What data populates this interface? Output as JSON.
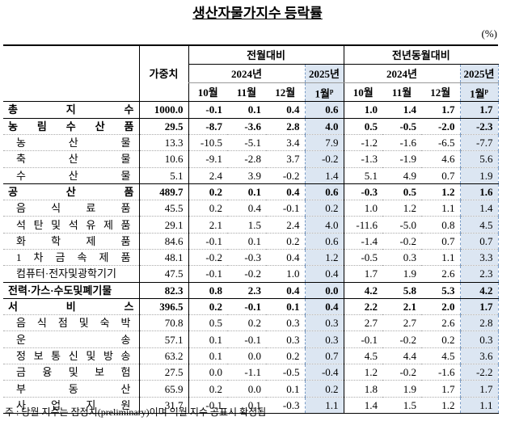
{
  "title": "생산자물가지수 등락률",
  "unit": "(%)",
  "header": {
    "weight": "가중치",
    "sections": [
      "전월대비",
      "전년동월대비"
    ],
    "years": [
      "2024년",
      "2025년"
    ],
    "months": [
      "10월",
      "11월",
      "12월",
      "1월"
    ],
    "prelim_mark": "p"
  },
  "rows": [
    {
      "name": "총 지 수",
      "weight": "1000.0",
      "values": [
        "-0.1",
        "0.1",
        "0.4",
        "0.6",
        "1.0",
        "1.4",
        "1.7",
        "1.7"
      ],
      "group": true
    },
    {
      "name": "농 림 수 산 품",
      "weight": "29.5",
      "values": [
        "-8.7",
        "-3.6",
        "2.8",
        "4.0",
        "0.5",
        "-0.5",
        "-2.0",
        "-2.3"
      ],
      "group": true
    },
    {
      "name": "농 산 물",
      "weight": "13.3",
      "values": [
        "-10.5",
        "-5.1",
        "3.4",
        "7.9",
        "-1.2",
        "-1.6",
        "-6.5",
        "-7.7"
      ],
      "group": false
    },
    {
      "name": "축 산 물",
      "weight": "10.6",
      "values": [
        "-9.1",
        "-2.8",
        "3.7",
        "-0.2",
        "-1.3",
        "-1.9",
        "4.6",
        "5.6"
      ],
      "group": false
    },
    {
      "name": "수 산 물",
      "weight": "5.1",
      "values": [
        "2.4",
        "3.9",
        "-0.2",
        "1.4",
        "5.1",
        "4.9",
        "0.7",
        "1.9"
      ],
      "group": false
    },
    {
      "name": "공 산 품",
      "weight": "489.7",
      "values": [
        "0.2",
        "0.1",
        "0.4",
        "0.6",
        "-0.3",
        "0.5",
        "1.2",
        "1.6"
      ],
      "group": true
    },
    {
      "name": "음 식 료 품",
      "weight": "45.5",
      "values": [
        "0.2",
        "0.4",
        "-0.1",
        "0.2",
        "1.0",
        "1.2",
        "1.1",
        "1.4"
      ],
      "group": false
    },
    {
      "name": "석 탄 및 석 유 제 품",
      "weight": "29.1",
      "values": [
        "2.1",
        "1.5",
        "2.4",
        "4.0",
        "-11.6",
        "-5.0",
        "0.8",
        "4.5"
      ],
      "group": false
    },
    {
      "name": "화 학 제 품",
      "weight": "84.6",
      "values": [
        "-0.1",
        "0.1",
        "0.2",
        "0.6",
        "-1.4",
        "-0.2",
        "0.7",
        "0.7"
      ],
      "group": false
    },
    {
      "name": "1 차 금 속 제 품",
      "weight": "48.1",
      "values": [
        "-0.2",
        "-0.3",
        "0.4",
        "1.2",
        "-0.5",
        "0.3",
        "1.1",
        "3.3"
      ],
      "group": false
    },
    {
      "name": "컴퓨터·전자및광학기기",
      "weight": "47.5",
      "values": [
        "-0.1",
        "-0.2",
        "1.0",
        "0.4",
        "1.7",
        "1.9",
        "2.6",
        "2.3"
      ],
      "group": false
    },
    {
      "name": "전력·가스·수도및폐기물",
      "weight": "82.3",
      "values": [
        "0.8",
        "2.3",
        "0.4",
        "0.0",
        "4.2",
        "5.8",
        "5.3",
        "4.2"
      ],
      "group": true
    },
    {
      "name": "서 비 스",
      "weight": "396.5",
      "values": [
        "0.2",
        "-0.1",
        "0.1",
        "0.4",
        "2.2",
        "2.1",
        "2.0",
        "1.7"
      ],
      "group": true
    },
    {
      "name": "음 식 점 및 숙 박",
      "weight": "70.8",
      "values": [
        "0.5",
        "0.2",
        "0.3",
        "0.3",
        "2.7",
        "2.7",
        "2.6",
        "2.8"
      ],
      "group": false
    },
    {
      "name": "운 송",
      "weight": "57.1",
      "values": [
        "0.1",
        "-0.1",
        "0.3",
        "0.3",
        "-0.1",
        "-0.2",
        "0.2",
        "0.3"
      ],
      "group": false
    },
    {
      "name": "정 보 통 신 및 방 송",
      "weight": "63.2",
      "values": [
        "0.1",
        "0.0",
        "0.2",
        "0.7",
        "4.5",
        "4.4",
        "4.5",
        "3.6"
      ],
      "group": false
    },
    {
      "name": "금 융 및 보 험",
      "weight": "27.5",
      "values": [
        "0.0",
        "-1.1",
        "-0.5",
        "-0.4",
        "1.2",
        "-0.2",
        "-1.6",
        "-2.2"
      ],
      "group": false
    },
    {
      "name": "부 동 산",
      "weight": "65.9",
      "values": [
        "0.2",
        "0.0",
        "0.1",
        "0.2",
        "1.8",
        "1.9",
        "1.7",
        "1.7"
      ],
      "group": false
    },
    {
      "name": "사 업 지 원",
      "weight": "31.7",
      "values": [
        "-0.1",
        "0.1",
        "-0.3",
        "1.1",
        "1.4",
        "1.5",
        "1.2",
        "1.1"
      ],
      "group": false
    }
  ],
  "footnote": "주 : 당월 지수는 잠정치(preliminary)이며 익월 지수 공표시 확정됨"
}
